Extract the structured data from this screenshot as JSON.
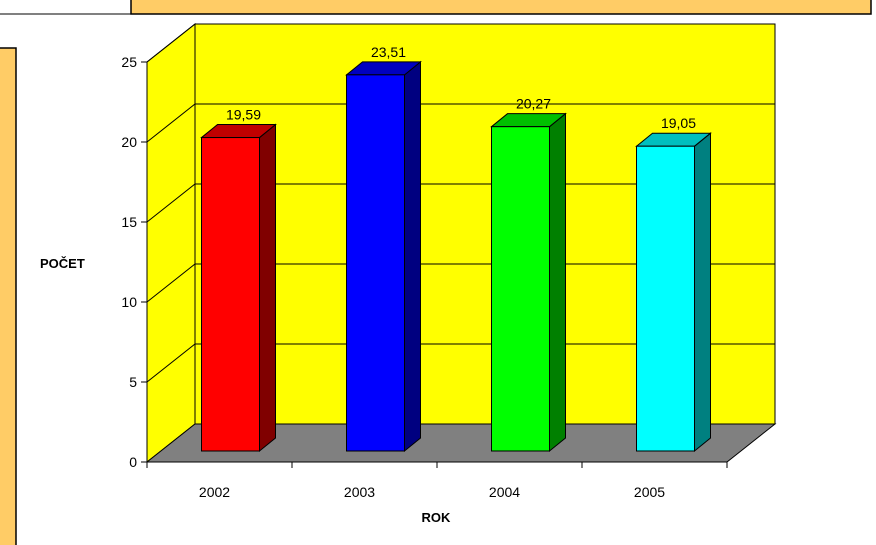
{
  "chart_data": {
    "type": "bar",
    "categories": [
      "2002",
      "2003",
      "2004",
      "2005"
    ],
    "values": [
      19.59,
      23.51,
      20.27,
      19.05
    ],
    "data_labels": [
      "19,59",
      "23,51",
      "20,27",
      "19,05"
    ],
    "title": "",
    "xlabel": "ROK",
    "ylabel": "POČET",
    "ylim": [
      0,
      25
    ],
    "yticks": [
      0,
      5,
      10,
      15,
      20,
      25
    ],
    "grid": true,
    "three_d": true,
    "colors": {
      "wall": "#ffff00",
      "floor": "#808080",
      "bars": [
        "#ff0000",
        "#0000ff",
        "#00ff00",
        "#00ffff"
      ],
      "bar_sides": [
        "#800000",
        "#000080",
        "#008000",
        "#008080"
      ],
      "bar_tops": [
        "#c00000",
        "#0000c0",
        "#00c000",
        "#00c0c0"
      ],
      "frame_accent": "#ffcc66"
    }
  }
}
